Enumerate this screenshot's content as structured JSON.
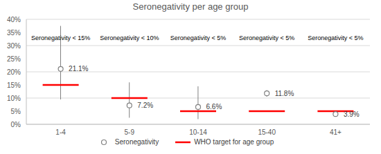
{
  "chart_data": {
    "type": "scatter",
    "title": "Seronegativity per age group",
    "categories": [
      "1-4",
      "5-9",
      "10-14",
      "15-40",
      "41+"
    ],
    "series": [
      {
        "name": "Seronegativity",
        "color": "#808080",
        "marker": "circle",
        "data_labels": true,
        "values": [
          21.1,
          7.2,
          6.6,
          11.8,
          3.9
        ],
        "value_labels": [
          "21.1%",
          "7.2%",
          "6.6%",
          "11.8%",
          "3.9%"
        ],
        "error_low": [
          9.5,
          2.5,
          2,
          10.5,
          3.2
        ],
        "error_high": [
          37.5,
          16,
          14.5,
          13,
          4.6
        ]
      },
      {
        "name": "WHO target for age group",
        "color": "#ff0000",
        "marker": "line",
        "values": [
          15,
          10,
          5,
          5,
          5
        ]
      }
    ],
    "annotations": [
      "Seronegativity < 15%",
      "Seronegativity < 10%",
      "Seronegativity < 5%",
      "Seronegativity < 5%",
      "Seronegativity < 5%"
    ],
    "ylim": [
      0,
      40
    ],
    "yticks": [
      {
        "value": 0,
        "label": "0%"
      },
      {
        "value": 5,
        "label": "5%"
      },
      {
        "value": 10,
        "label": "10%"
      },
      {
        "value": 15,
        "label": "15%"
      },
      {
        "value": 20,
        "label": "20%"
      },
      {
        "value": 25,
        "label": "25%"
      },
      {
        "value": 30,
        "label": "30%"
      },
      {
        "value": 35,
        "label": "35%"
      },
      {
        "value": 40,
        "label": "40%"
      }
    ],
    "grid": true,
    "legend": "bottom"
  }
}
